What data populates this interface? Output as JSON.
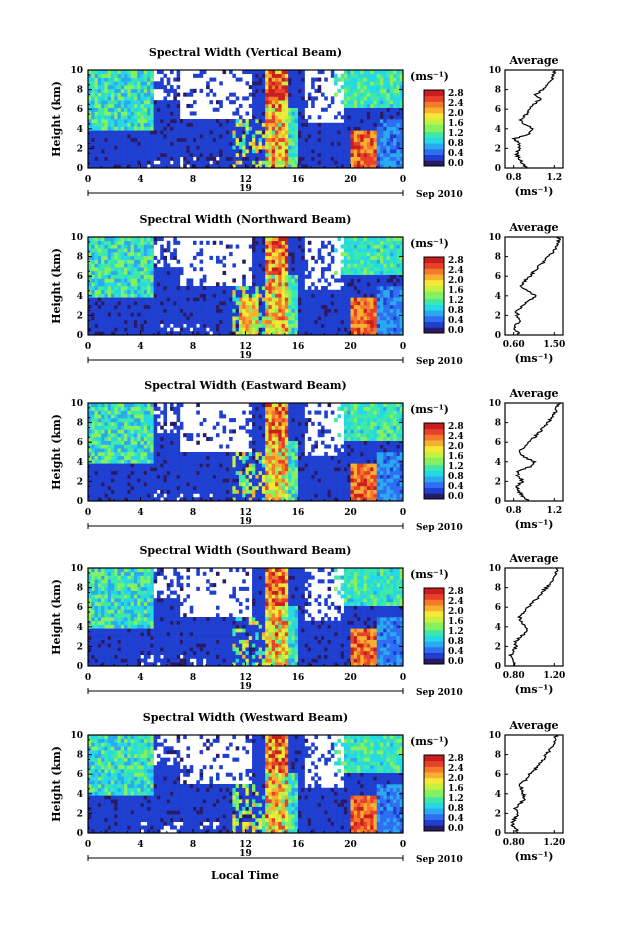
{
  "chart_data": [
    {
      "type": "heatmap",
      "title": "Spectral Width (Vertical Beam)",
      "ylabel": "Height (km)",
      "x_ticks": [
        "0",
        "4",
        "8",
        "12",
        "16",
        "20",
        "0"
      ],
      "date_label": "19",
      "date_suffix": "Sep 2010",
      "y_ticks": [
        "0",
        "2",
        "4",
        "6",
        "8",
        "10"
      ],
      "colorbar_unit": "(ms⁻¹)",
      "colorbar_ticks": [
        "0.0",
        "0.4",
        "0.8",
        "1.2",
        "1.6",
        "2.0",
        "2.4",
        "2.8"
      ],
      "profile_title": "Average",
      "profile_x_ticks": [
        "0.8",
        "1.2"
      ],
      "profile_xlabel": "(ms⁻¹)",
      "profile_y_ticks": [
        "0",
        "2",
        "4",
        "6",
        "8",
        "10"
      ],
      "profile_xlim": [
        0.6,
        1.2
      ],
      "profile": [
        [
          0,
          0.82
        ],
        [
          0.5,
          0.78
        ],
        [
          1,
          0.74
        ],
        [
          1.5,
          0.72
        ],
        [
          2,
          0.76
        ],
        [
          2.5,
          0.74
        ],
        [
          3,
          0.7
        ],
        [
          3.5,
          0.86
        ],
        [
          4,
          0.88
        ],
        [
          4.5,
          0.8
        ],
        [
          5,
          0.76
        ],
        [
          5.5,
          0.82
        ],
        [
          6,
          0.86
        ],
        [
          6.5,
          0.9
        ],
        [
          7,
          0.96
        ],
        [
          7.5,
          0.92
        ],
        [
          8,
          1.0
        ],
        [
          8.5,
          1.04
        ],
        [
          9,
          1.08
        ],
        [
          9.5,
          1.1
        ],
        [
          10,
          1.12
        ]
      ]
    },
    {
      "type": "heatmap",
      "title": "Spectral Width (Northward Beam)",
      "ylabel": "Height (km)",
      "x_ticks": [
        "0",
        "4",
        "8",
        "12",
        "16",
        "20",
        "0"
      ],
      "date_label": "19",
      "date_suffix": "Sep 2010",
      "y_ticks": [
        "0",
        "2",
        "4",
        "6",
        "8",
        "10"
      ],
      "colorbar_unit": "(ms⁻¹)",
      "colorbar_ticks": [
        "0.0",
        "0.4",
        "0.8",
        "1.2",
        "1.6",
        "2.0",
        "2.4",
        "2.8"
      ],
      "profile_title": "Average",
      "profile_x_ticks": [
        "0.60",
        "1.50"
      ],
      "profile_xlabel": "(ms⁻¹)",
      "profile_y_ticks": [
        "0",
        "2",
        "4",
        "6",
        "8",
        "10"
      ],
      "profile_xlim": [
        0.4,
        1.6
      ],
      "profile": [
        [
          0,
          0.7
        ],
        [
          0.5,
          0.62
        ],
        [
          1,
          0.6
        ],
        [
          1.5,
          0.72
        ],
        [
          2,
          0.66
        ],
        [
          2.5,
          0.64
        ],
        [
          3,
          0.76
        ],
        [
          3.5,
          0.9
        ],
        [
          4,
          1.02
        ],
        [
          4.5,
          0.86
        ],
        [
          5,
          0.74
        ],
        [
          5.5,
          0.8
        ],
        [
          6,
          0.92
        ],
        [
          6.5,
          1.0
        ],
        [
          7,
          1.1
        ],
        [
          7.5,
          1.2
        ],
        [
          8,
          1.3
        ],
        [
          8.5,
          1.4
        ],
        [
          9,
          1.46
        ],
        [
          9.5,
          1.5
        ],
        [
          10,
          1.52
        ]
      ]
    },
    {
      "type": "heatmap",
      "title": "Spectral Width (Eastward Beam)",
      "ylabel": "Height (km)",
      "x_ticks": [
        "0",
        "4",
        "8",
        "12",
        "16",
        "20",
        "0"
      ],
      "date_label": "19",
      "date_suffix": "Sep 2010",
      "y_ticks": [
        "0",
        "2",
        "4",
        "6",
        "8",
        "10"
      ],
      "colorbar_unit": "(ms⁻¹)",
      "colorbar_ticks": [
        "0.0",
        "0.4",
        "0.8",
        "1.2",
        "1.6",
        "2.0",
        "2.4",
        "2.8"
      ],
      "profile_title": "Average",
      "profile_x_ticks": [
        "0.8",
        "1.2"
      ],
      "profile_xlabel": "(ms⁻¹)",
      "profile_y_ticks": [
        "0",
        "2",
        "4",
        "6",
        "8",
        "10"
      ],
      "profile_xlim": [
        0.6,
        1.2
      ],
      "profile": [
        [
          0,
          0.84
        ],
        [
          0.5,
          0.78
        ],
        [
          1,
          0.74
        ],
        [
          1.5,
          0.72
        ],
        [
          2,
          0.78
        ],
        [
          2.5,
          0.74
        ],
        [
          3,
          0.72
        ],
        [
          3.5,
          0.86
        ],
        [
          4,
          0.9
        ],
        [
          4.5,
          0.8
        ],
        [
          5,
          0.74
        ],
        [
          5.5,
          0.8
        ],
        [
          6,
          0.84
        ],
        [
          6.5,
          0.9
        ],
        [
          7,
          0.96
        ],
        [
          7.5,
          1.0
        ],
        [
          8,
          1.04
        ],
        [
          8.5,
          1.08
        ],
        [
          9,
          1.12
        ],
        [
          9.5,
          1.14
        ],
        [
          10,
          1.16
        ]
      ]
    },
    {
      "type": "heatmap",
      "title": "Spectral Width (Southward Beam)",
      "ylabel": "Height (km)",
      "x_ticks": [
        "0",
        "4",
        "8",
        "12",
        "16",
        "20",
        "0"
      ],
      "date_label": "19",
      "date_suffix": "Sep 2010",
      "y_ticks": [
        "0",
        "2",
        "4",
        "6",
        "8",
        "10"
      ],
      "colorbar_unit": "(ms⁻¹)",
      "colorbar_ticks": [
        "0.0",
        "0.4",
        "0.8",
        "1.2",
        "1.6",
        "2.0",
        "2.4",
        "2.8"
      ],
      "profile_title": "Average",
      "profile_x_ticks": [
        "0.80",
        "1.20"
      ],
      "profile_xlabel": "(ms⁻¹)",
      "profile_y_ticks": [
        "0",
        "2",
        "4",
        "6",
        "8",
        "10"
      ],
      "profile_xlim": [
        0.6,
        1.3
      ],
      "profile": [
        [
          0,
          0.74
        ],
        [
          0.5,
          0.7
        ],
        [
          1,
          0.66
        ],
        [
          1.5,
          0.7
        ],
        [
          2,
          0.74
        ],
        [
          2.5,
          0.72
        ],
        [
          3,
          0.8
        ],
        [
          3.5,
          0.86
        ],
        [
          4,
          0.84
        ],
        [
          4.5,
          0.8
        ],
        [
          5,
          0.78
        ],
        [
          5.5,
          0.84
        ],
        [
          6,
          0.88
        ],
        [
          6.5,
          0.94
        ],
        [
          7,
          1.0
        ],
        [
          7.5,
          1.04
        ],
        [
          8,
          1.1
        ],
        [
          8.5,
          1.16
        ],
        [
          9,
          1.2
        ],
        [
          9.5,
          1.22
        ],
        [
          10,
          1.24
        ]
      ]
    },
    {
      "type": "heatmap",
      "title": "Spectral Width (Westward Beam)",
      "ylabel": "Height (km)",
      "x_ticks": [
        "0",
        "4",
        "8",
        "12",
        "16",
        "20",
        "0"
      ],
      "date_label": "19",
      "date_suffix": "Sep 2010",
      "y_ticks": [
        "0",
        "2",
        "4",
        "6",
        "8",
        "10"
      ],
      "colorbar_unit": "(ms⁻¹)",
      "colorbar_ticks": [
        "0.0",
        "0.4",
        "0.8",
        "1.2",
        "1.6",
        "2.0",
        "2.4",
        "2.8"
      ],
      "profile_title": "Average",
      "profile_x_ticks": [
        "0.80",
        "1.20"
      ],
      "profile_xlabel": "(ms⁻¹)",
      "profile_y_ticks": [
        "0",
        "2",
        "4",
        "6",
        "8",
        "10"
      ],
      "profile_xlim": [
        0.6,
        1.3
      ],
      "profile": [
        [
          0,
          0.76
        ],
        [
          0.5,
          0.72
        ],
        [
          1,
          0.68
        ],
        [
          1.5,
          0.72
        ],
        [
          2,
          0.76
        ],
        [
          2.5,
          0.72
        ],
        [
          3,
          0.78
        ],
        [
          3.5,
          0.84
        ],
        [
          4,
          0.82
        ],
        [
          4.5,
          0.8
        ],
        [
          5,
          0.78
        ],
        [
          5.5,
          0.86
        ],
        [
          6,
          0.9
        ],
        [
          6.5,
          0.96
        ],
        [
          7,
          1.02
        ],
        [
          7.5,
          1.06
        ],
        [
          8,
          1.1
        ],
        [
          8.5,
          1.14
        ],
        [
          9,
          1.18
        ],
        [
          9.5,
          1.2
        ],
        [
          10,
          1.22
        ]
      ]
    }
  ],
  "bottom_xlabel": "Local Time",
  "colors": {
    "palette": [
      "#2a1a66",
      "#1f3fd0",
      "#2f6ef0",
      "#2aa8f0",
      "#25d8e6",
      "#3ee8a8",
      "#86f060",
      "#c8f040",
      "#f6e836",
      "#f8b030",
      "#f47a2a",
      "#e8402a",
      "#c81e1e"
    ]
  }
}
